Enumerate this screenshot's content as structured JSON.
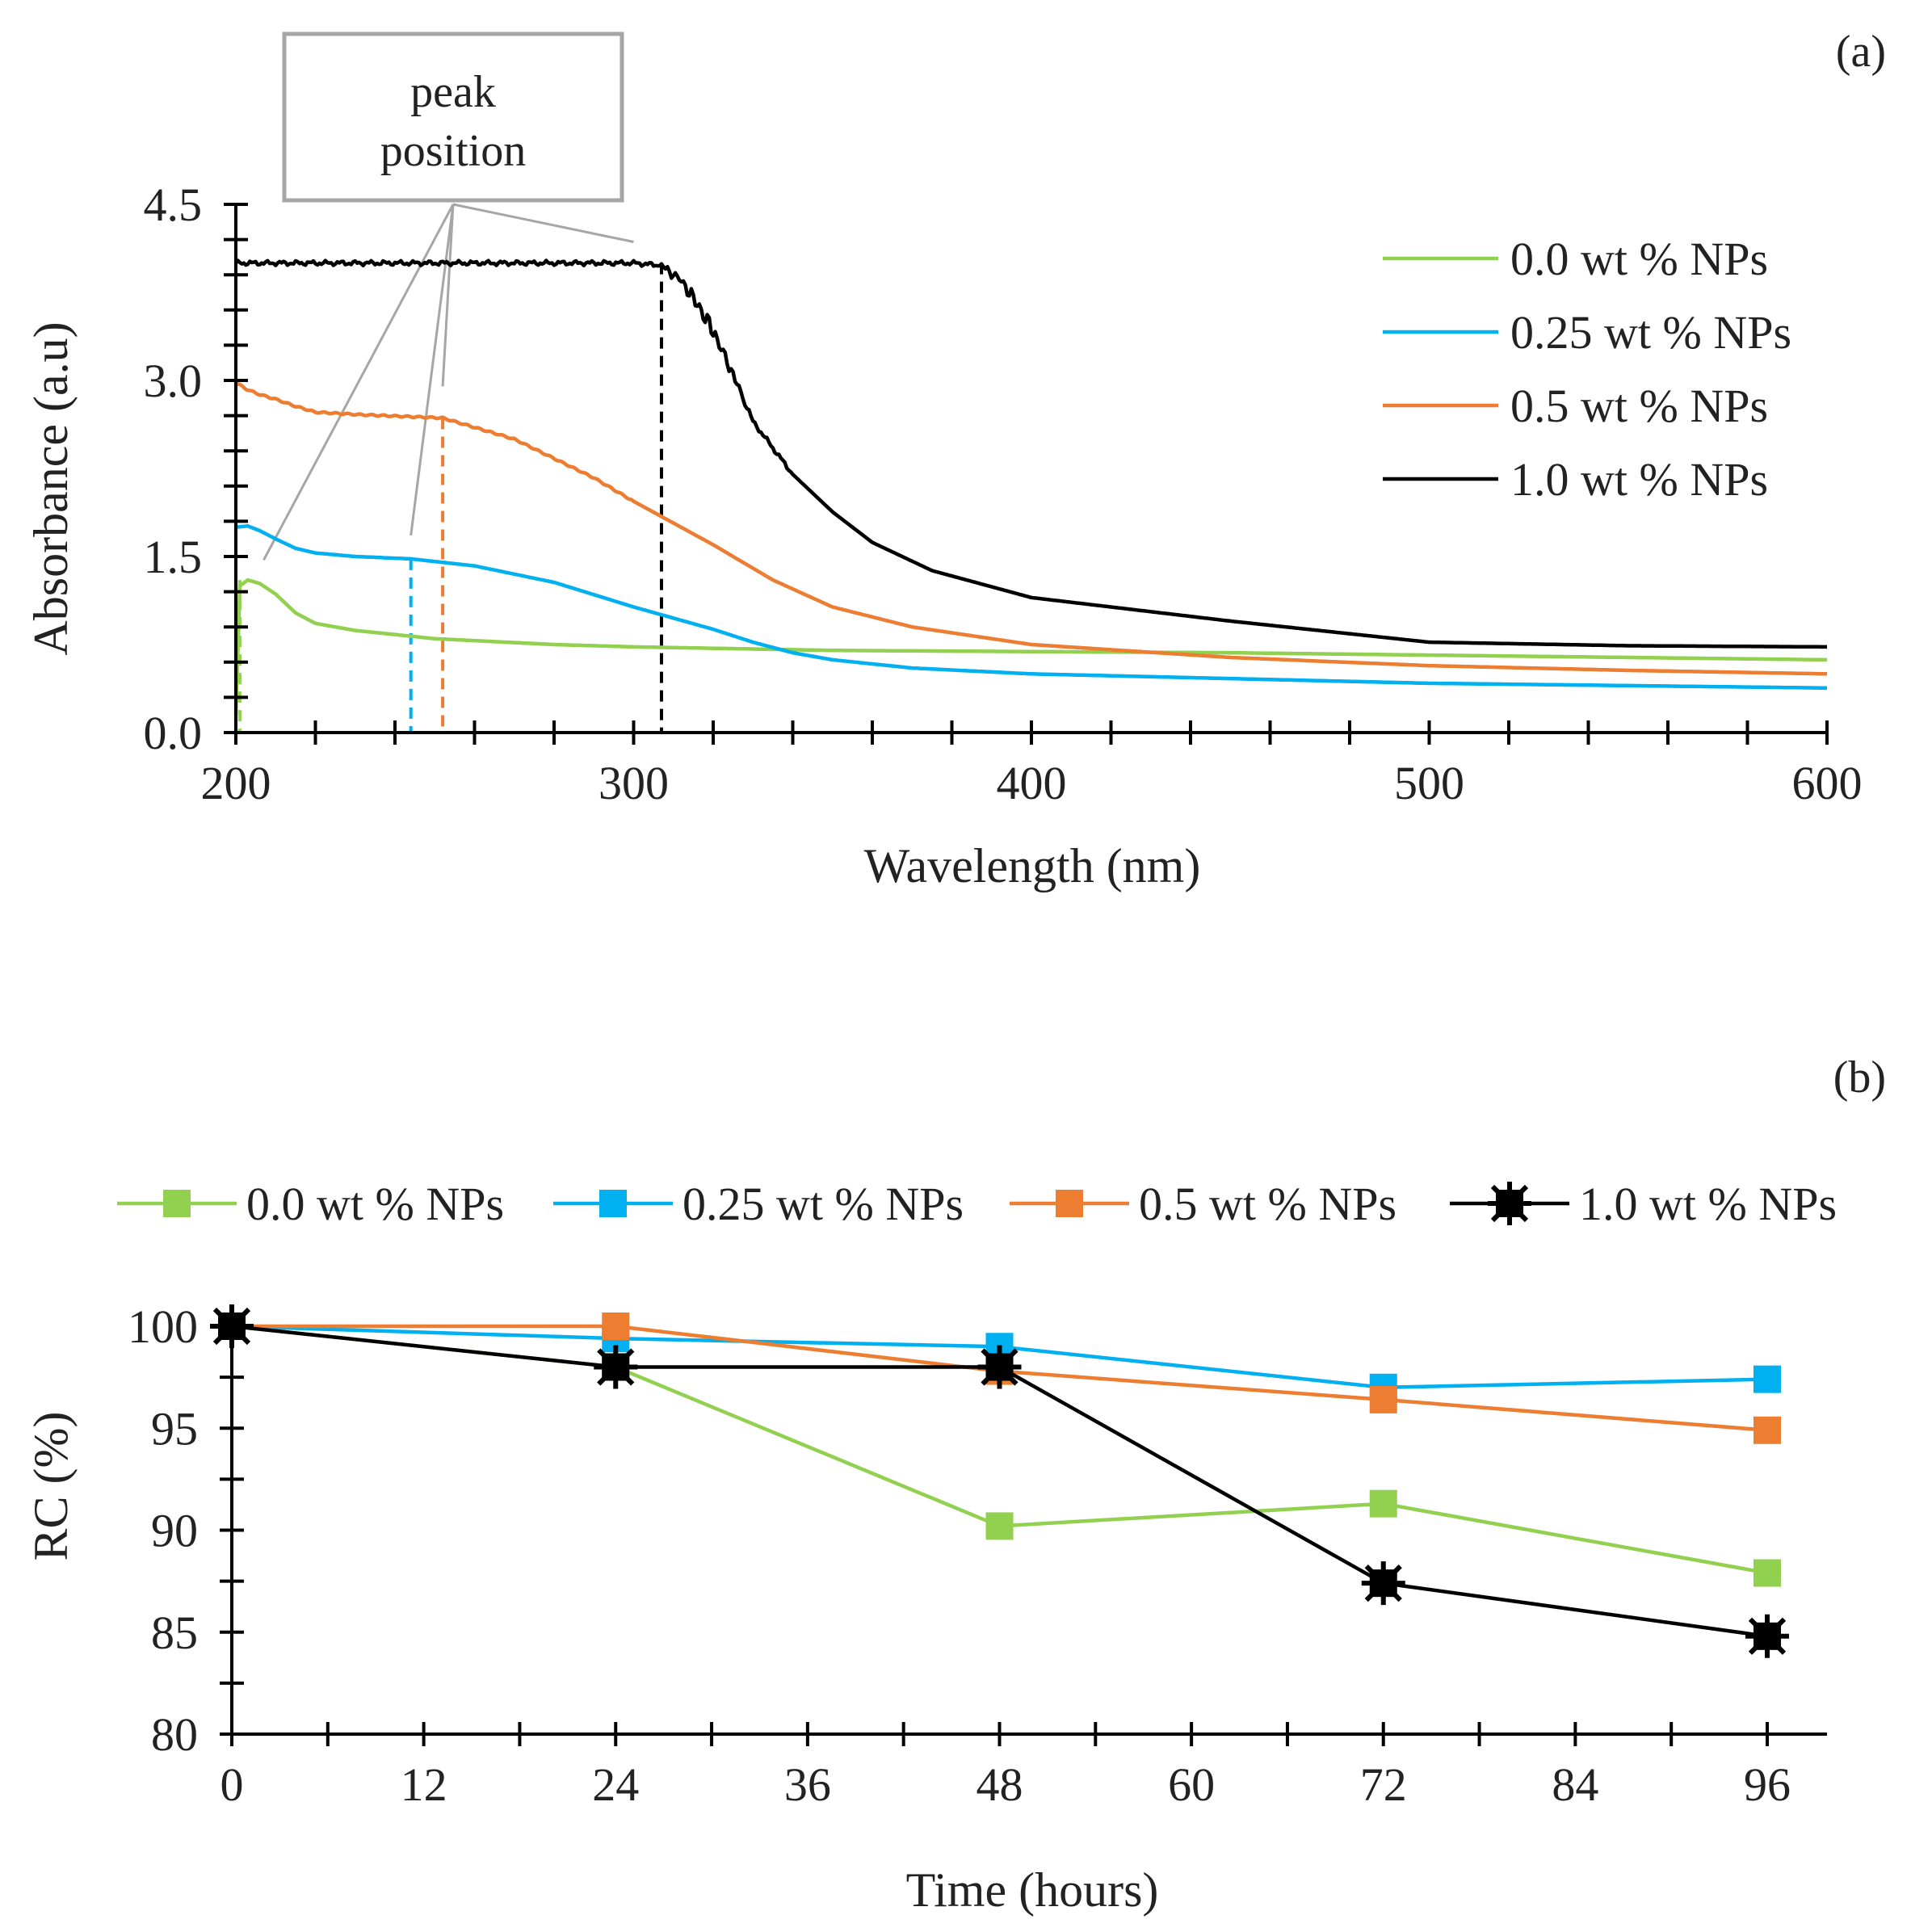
{
  "colors": {
    "s0": "#92d050",
    "s1": "#00b0f0",
    "s2": "#ed7d31",
    "s3": "#000000",
    "axis": "#000000",
    "annotation": "#a6a6a6",
    "text": "#222222"
  },
  "chart_data": [
    {
      "type": "line",
      "panel_label": "(a)",
      "title": "",
      "xlabel": "Wavelength (nm)",
      "ylabel": "Absorbance (a.u)",
      "xlim": [
        200,
        600
      ],
      "ylim": [
        0,
        4.5
      ],
      "xticks": [
        "200",
        "300",
        "400",
        "500",
        "600"
      ],
      "yticks": [
        "0.0",
        "1.5",
        "3.0",
        "4.5"
      ],
      "legend_position": "top-right",
      "annotation_text": [
        "peak",
        "position"
      ],
      "peak_positions": [
        {
          "series": "0.0 wt % NPs",
          "x": 201,
          "y": 1.3
        },
        {
          "series": "0.25 wt % NPs",
          "x": 244,
          "y": 1.48
        },
        {
          "series": "0.5 wt % NPs",
          "x": 252,
          "y": 2.68
        },
        {
          "series": "1.0 wt % NPs",
          "x": 307,
          "y": 4.0
        }
      ],
      "series": [
        {
          "name": "0.0 wt % NPs",
          "color": "#92d050",
          "x": [
            200,
            201,
            203,
            206,
            210,
            215,
            220,
            230,
            250,
            280,
            300,
            350,
            400,
            450,
            500,
            550,
            600
          ],
          "y": [
            0.15,
            1.25,
            1.3,
            1.27,
            1.18,
            1.02,
            0.93,
            0.87,
            0.8,
            0.75,
            0.73,
            0.7,
            0.69,
            0.68,
            0.66,
            0.64,
            0.62
          ]
        },
        {
          "name": "0.25 wt % NPs",
          "color": "#00b0f0",
          "x": [
            200,
            203,
            206,
            210,
            215,
            220,
            230,
            244,
            260,
            280,
            300,
            320,
            330,
            340,
            350,
            370,
            400,
            450,
            500,
            550,
            600
          ],
          "y": [
            1.75,
            1.76,
            1.72,
            1.65,
            1.57,
            1.53,
            1.5,
            1.48,
            1.42,
            1.28,
            1.07,
            0.88,
            0.77,
            0.68,
            0.62,
            0.55,
            0.5,
            0.46,
            0.42,
            0.4,
            0.38
          ]
        },
        {
          "name": "0.5 wt % NPs",
          "color": "#ed7d31",
          "x": [
            200,
            203,
            206,
            210,
            215,
            220,
            230,
            252,
            270,
            290,
            300,
            320,
            335,
            350,
            370,
            400,
            450,
            500,
            550,
            600
          ],
          "y": [
            2.98,
            2.92,
            2.88,
            2.84,
            2.78,
            2.73,
            2.71,
            2.68,
            2.5,
            2.17,
            1.97,
            1.6,
            1.3,
            1.07,
            0.9,
            0.75,
            0.64,
            0.57,
            0.53,
            0.5
          ]
        },
        {
          "name": "1.0 wt % NPs",
          "color": "#000000",
          "x": [
            200,
            250,
            300,
            307,
            312,
            316,
            320,
            325,
            330,
            340,
            350,
            360,
            375,
            400,
            450,
            500,
            550,
            600
          ],
          "y": [
            4.0,
            4.0,
            4.0,
            3.98,
            3.85,
            3.65,
            3.42,
            3.05,
            2.65,
            2.2,
            1.88,
            1.62,
            1.38,
            1.15,
            0.95,
            0.77,
            0.74,
            0.73
          ]
        }
      ]
    },
    {
      "type": "line",
      "panel_label": "(b)",
      "title": "",
      "xlabel": "Time (hours)",
      "ylabel": "RC (%)",
      "xlim": [
        0,
        96
      ],
      "ylim": [
        80,
        100
      ],
      "xticks": [
        "0",
        "12",
        "24",
        "36",
        "48",
        "60",
        "72",
        "84",
        "96"
      ],
      "yticks": [
        "80",
        "85",
        "90",
        "95",
        "100"
      ],
      "legend_position": "top",
      "series": [
        {
          "name": "0.0 wt % NPs",
          "color": "#92d050",
          "x": [
            0,
            24,
            48,
            72,
            96
          ],
          "y": [
            100,
            98.0,
            90.2,
            91.3,
            87.9
          ]
        },
        {
          "name": "0.25 wt % NPs",
          "color": "#00b0f0",
          "x": [
            0,
            24,
            48,
            72,
            96
          ],
          "y": [
            100,
            99.4,
            99.0,
            97.0,
            97.4
          ]
        },
        {
          "name": "0.5 wt % NPs",
          "color": "#ed7d31",
          "x": [
            0,
            24,
            48,
            72,
            96
          ],
          "y": [
            100,
            100,
            97.8,
            96.4,
            94.9
          ]
        },
        {
          "name": "1.0 wt % NPs",
          "color": "#000000",
          "x": [
            0,
            24,
            48,
            72,
            96
          ],
          "y": [
            100,
            98.0,
            98.0,
            87.4,
            84.8
          ]
        }
      ]
    }
  ]
}
